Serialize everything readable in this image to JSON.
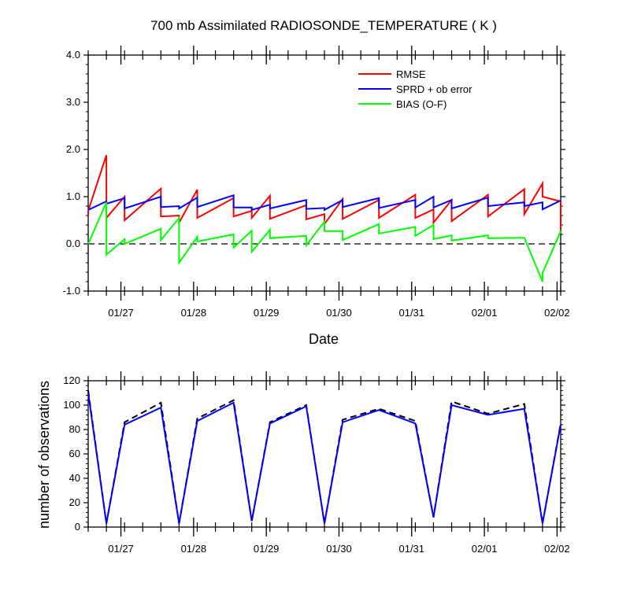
{
  "chart_data": [
    {
      "type": "line",
      "title": "700 mb Assimilated RADIOSONDE_TEMPERATURE ( K )",
      "xlabel": "Date",
      "ylabel": "",
      "ylim": [
        -1.0,
        4.0
      ],
      "y_ticks": [
        "-1.0",
        "0.0",
        "1.0",
        "2.0",
        "3.0",
        "4.0"
      ],
      "x_tick_labels": [
        "01/27",
        "01/28",
        "01/29",
        "01/30",
        "01/31",
        "02/01",
        "02/02"
      ],
      "legend_position": "top-right",
      "zero_line": "dashed",
      "series": [
        {
          "name": "RMSE",
          "color": "#ff0000",
          "points": [
            [
              0.0,
              0.6
            ],
            [
              0.0,
              0.7
            ],
            [
              0.25,
              1.88
            ],
            [
              0.25,
              0.55
            ],
            [
              0.5,
              1.0
            ],
            [
              0.5,
              0.5
            ],
            [
              1.0,
              1.17
            ],
            [
              1.0,
              0.58
            ],
            [
              1.25,
              0.6
            ],
            [
              1.25,
              0.45
            ],
            [
              1.5,
              1.15
            ],
            [
              1.5,
              0.55
            ],
            [
              2.0,
              0.97
            ],
            [
              2.0,
              0.58
            ],
            [
              2.25,
              0.7
            ],
            [
              2.25,
              0.55
            ],
            [
              2.5,
              1.02
            ],
            [
              2.5,
              0.53
            ],
            [
              3.0,
              0.82
            ],
            [
              3.0,
              0.52
            ],
            [
              3.25,
              0.63
            ],
            [
              3.25,
              0.42
            ],
            [
              3.5,
              0.95
            ],
            [
              3.5,
              0.53
            ],
            [
              4.0,
              0.93
            ],
            [
              4.0,
              0.55
            ],
            [
              4.5,
              1.04
            ],
            [
              4.5,
              0.55
            ],
            [
              4.75,
              0.73
            ],
            [
              4.75,
              0.45
            ],
            [
              5.0,
              0.93
            ],
            [
              5.0,
              0.48
            ],
            [
              5.5,
              1.04
            ],
            [
              5.5,
              0.58
            ],
            [
              6.0,
              1.16
            ],
            [
              6.0,
              0.63
            ],
            [
              6.25,
              1.28
            ],
            [
              6.25,
              1.0
            ],
            [
              6.5,
              0.9
            ],
            [
              6.5,
              0.3
            ]
          ]
        },
        {
          "name": "SPRD + ob error",
          "color": "#0000ff",
          "points": [
            [
              0.0,
              0.72
            ],
            [
              0.25,
              0.9
            ],
            [
              0.25,
              0.85
            ],
            [
              0.5,
              0.97
            ],
            [
              0.5,
              0.75
            ],
            [
              1.0,
              1.0
            ],
            [
              1.0,
              0.78
            ],
            [
              1.25,
              0.8
            ],
            [
              1.25,
              0.75
            ],
            [
              1.5,
              0.98
            ],
            [
              1.5,
              0.78
            ],
            [
              2.0,
              1.03
            ],
            [
              2.0,
              0.77
            ],
            [
              2.25,
              0.77
            ],
            [
              2.25,
              0.72
            ],
            [
              2.5,
              0.83
            ],
            [
              2.5,
              0.75
            ],
            [
              3.0,
              0.93
            ],
            [
              3.0,
              0.74
            ],
            [
              3.25,
              0.76
            ],
            [
              3.25,
              0.72
            ],
            [
              3.5,
              0.93
            ],
            [
              3.5,
              0.78
            ],
            [
              4.0,
              0.97
            ],
            [
              4.0,
              0.76
            ],
            [
              4.5,
              0.93
            ],
            [
              4.5,
              0.77
            ],
            [
              4.75,
              1.0
            ],
            [
              4.75,
              0.77
            ],
            [
              5.0,
              0.93
            ],
            [
              5.0,
              0.75
            ],
            [
              5.5,
              0.98
            ],
            [
              5.5,
              0.8
            ],
            [
              6.0,
              0.88
            ],
            [
              6.0,
              0.8
            ],
            [
              6.25,
              0.88
            ],
            [
              6.25,
              0.73
            ],
            [
              6.5,
              0.92
            ]
          ]
        },
        {
          "name": "BIAS (O-F)",
          "color": "#00ff00",
          "points": [
            [
              0.0,
              0.0
            ],
            [
              0.25,
              0.88
            ],
            [
              0.25,
              -0.23
            ],
            [
              0.5,
              0.1
            ],
            [
              0.5,
              0.0
            ],
            [
              1.0,
              0.32
            ],
            [
              1.0,
              0.08
            ],
            [
              1.25,
              0.55
            ],
            [
              1.25,
              -0.4
            ],
            [
              1.5,
              0.15
            ],
            [
              1.5,
              0.05
            ],
            [
              2.0,
              0.2
            ],
            [
              2.0,
              -0.08
            ],
            [
              2.25,
              0.28
            ],
            [
              2.25,
              -0.17
            ],
            [
              2.5,
              0.3
            ],
            [
              2.5,
              0.12
            ],
            [
              3.0,
              0.17
            ],
            [
              3.0,
              -0.03
            ],
            [
              3.25,
              0.47
            ],
            [
              3.25,
              0.27
            ],
            [
              3.5,
              0.27
            ],
            [
              3.5,
              0.08
            ],
            [
              4.0,
              0.42
            ],
            [
              4.0,
              0.22
            ],
            [
              4.5,
              0.36
            ],
            [
              4.5,
              0.17
            ],
            [
              4.75,
              0.4
            ],
            [
              4.75,
              0.1
            ],
            [
              5.0,
              0.18
            ],
            [
              5.0,
              0.07
            ],
            [
              5.5,
              0.18
            ],
            [
              5.5,
              0.12
            ],
            [
              6.0,
              0.13
            ],
            [
              6.25,
              -0.8
            ],
            [
              6.25,
              -0.62
            ],
            [
              6.5,
              0.27
            ]
          ]
        }
      ]
    },
    {
      "type": "line",
      "title": "",
      "xlabel": "",
      "ylabel": "number of observations",
      "ylim": [
        0,
        120
      ],
      "y_ticks": [
        "0",
        "20",
        "40",
        "60",
        "80",
        "100",
        "120"
      ],
      "x_tick_labels": [
        "01/27",
        "01/28",
        "01/29",
        "01/30",
        "01/31",
        "02/01",
        "02/02"
      ],
      "series": [
        {
          "color": "#000000",
          "dashed": true,
          "points": [
            [
              0.0,
              112
            ],
            [
              0.25,
              3
            ],
            [
              0.5,
              86
            ],
            [
              1.0,
              102
            ],
            [
              1.25,
              3
            ],
            [
              1.5,
              89
            ],
            [
              2.0,
              104
            ],
            [
              2.25,
              5
            ],
            [
              2.5,
              86
            ],
            [
              3.0,
              100
            ],
            [
              3.25,
              3
            ],
            [
              3.5,
              88
            ],
            [
              4.0,
              97
            ],
            [
              4.5,
              87
            ],
            [
              4.75,
              8
            ],
            [
              5.0,
              103
            ],
            [
              5.5,
              93
            ],
            [
              6.0,
              101
            ],
            [
              6.25,
              3
            ],
            [
              6.5,
              85
            ]
          ]
        },
        {
          "color": "#0000ff",
          "dashed": false,
          "points": [
            [
              0.0,
              110
            ],
            [
              0.25,
              3
            ],
            [
              0.5,
              84
            ],
            [
              1.0,
              98
            ],
            [
              1.25,
              3
            ],
            [
              1.5,
              87
            ],
            [
              2.0,
              102
            ],
            [
              2.25,
              5
            ],
            [
              2.5,
              85
            ],
            [
              3.0,
              99
            ],
            [
              3.25,
              3
            ],
            [
              3.5,
              86
            ],
            [
              4.0,
              96
            ],
            [
              4.5,
              85
            ],
            [
              4.75,
              8
            ],
            [
              5.0,
              100
            ],
            [
              5.5,
              92
            ],
            [
              6.0,
              97
            ],
            [
              6.25,
              3
            ],
            [
              6.5,
              84
            ]
          ]
        }
      ]
    }
  ]
}
